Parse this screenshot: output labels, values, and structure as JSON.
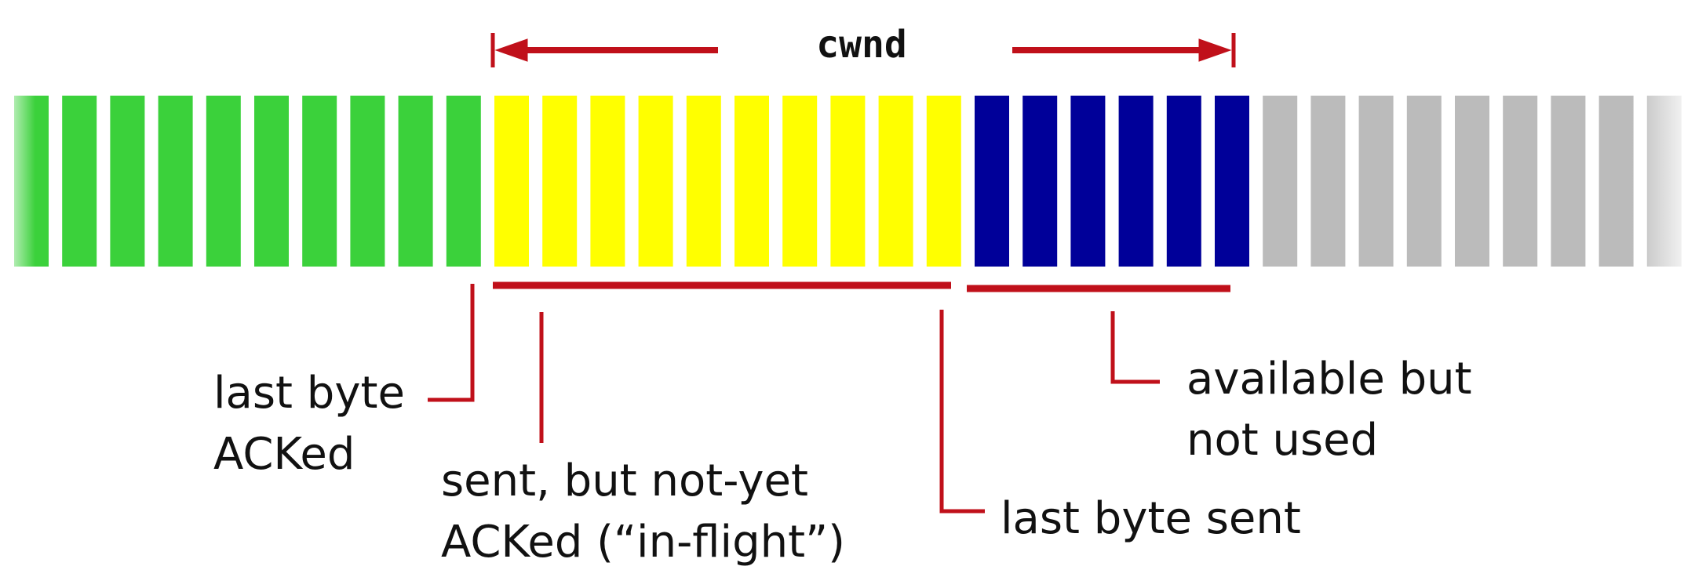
{
  "cwnd_label": "cwnd",
  "colors": {
    "acked": "#3bd13b",
    "in_flight": "#ffff00",
    "available": "#000099",
    "unusable": "#bbbbbb",
    "annotation": "#c0101a"
  },
  "segments": {
    "acked": 10,
    "in_flight": 10,
    "available": 6,
    "unusable": 9
  },
  "labels": {
    "last_byte_acked": [
      "last byte",
      "ACKed"
    ],
    "in_flight": [
      "sent, but not-yet",
      "ACKed (“in-flight”)"
    ],
    "last_byte_sent": "last byte sent",
    "available": [
      "available but",
      "not used"
    ]
  }
}
